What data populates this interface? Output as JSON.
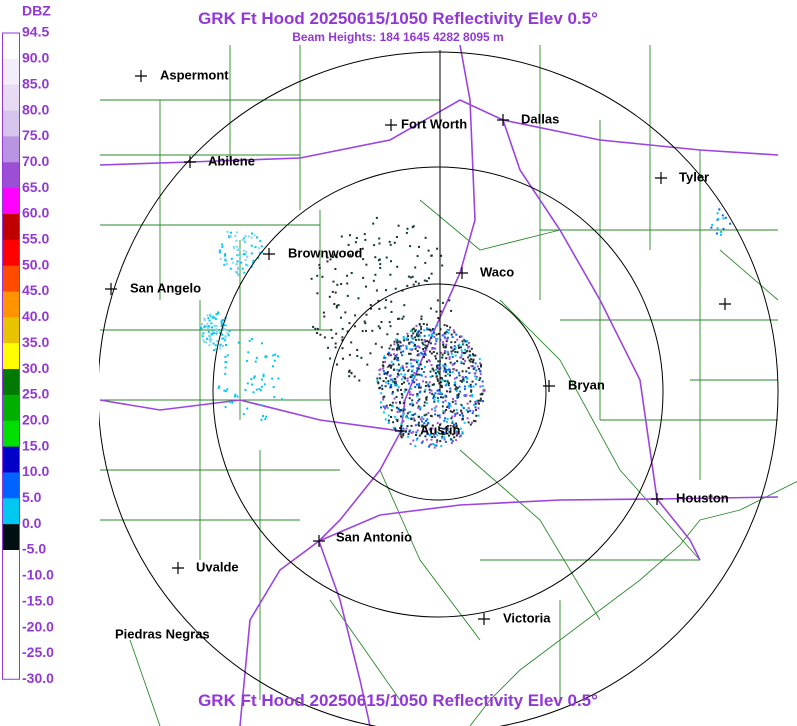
{
  "header": {
    "title": "GRK Ft Hood 20250615/1050 Reflectivity Elev 0.5°",
    "subtitle": "Beam Heights: 184 1645 4282 8095 m"
  },
  "footer": {
    "title": "GRK Ft Hood 20250615/1050 Reflectivity Elev 0.5°"
  },
  "legend": {
    "title": "DBZ",
    "labels": [
      "94.5",
      "90.0",
      "85.0",
      "80.0",
      "75.0",
      "70.0",
      "65.0",
      "60.0",
      "55.0",
      "50.0",
      "45.0",
      "40.0",
      "35.0",
      "30.0",
      "25.0",
      "20.0",
      "15.0",
      "10.0",
      "5.0",
      "0.0",
      "-5.0",
      "-10.0",
      "-15.0",
      "-20.0",
      "-25.0",
      "-30.0"
    ],
    "colors": [
      "#ffffff",
      "#f3eefa",
      "#e6dcf4",
      "#d6c6ee",
      "#b994e2",
      "#9b4ed6",
      "#ff00ff",
      "#c00000",
      "#ff0000",
      "#ff4a00",
      "#ff9400",
      "#e8c400",
      "#ffff00",
      "#007a00",
      "#00b000",
      "#00e000",
      "#0000c8",
      "#0062ff",
      "#00c8f0",
      "#001010",
      "#ffffff",
      "#ffffff",
      "#ffffff",
      "#ffffff",
      "#ffffff"
    ]
  },
  "cities": [
    {
      "name": "Aspermont"
    },
    {
      "name": "Fort Worth"
    },
    {
      "name": "Dallas"
    },
    {
      "name": "Abilene"
    },
    {
      "name": "Tyler"
    },
    {
      "name": "Brownwood"
    },
    {
      "name": "Waco"
    },
    {
      "name": "San Angelo"
    },
    {
      "name": "Bryan"
    },
    {
      "name": "Austin"
    },
    {
      "name": "Houston"
    },
    {
      "name": "San Antonio"
    },
    {
      "name": "Uvalde"
    },
    {
      "name": "Victoria"
    },
    {
      "name": "Piedras Negras"
    }
  ]
}
